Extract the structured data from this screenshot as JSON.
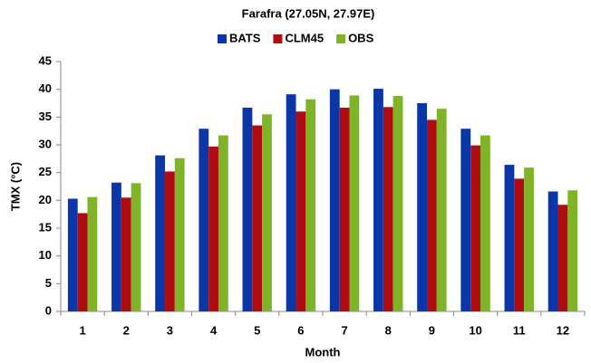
{
  "chart_data": {
    "type": "bar",
    "title": "Farafra (27.05N, 27.97E)",
    "x_label": "Month",
    "y_label": "TMX (°C)",
    "categories": [
      "1",
      "2",
      "3",
      "4",
      "5",
      "6",
      "7",
      "8",
      "9",
      "10",
      "11",
      "12"
    ],
    "series": [
      {
        "name": "BATS",
        "color": "#0a36a8",
        "values": [
          20.3,
          23.2,
          28.1,
          32.9,
          36.7,
          39.1,
          40.0,
          40.1,
          37.5,
          32.9,
          26.4,
          21.6
        ]
      },
      {
        "name": "CLM45",
        "color": "#b00d12",
        "values": [
          17.7,
          20.5,
          25.2,
          29.7,
          33.5,
          36.0,
          36.7,
          36.8,
          34.5,
          29.9,
          23.9,
          19.2
        ]
      },
      {
        "name": "OBS",
        "color": "#7fb428",
        "values": [
          20.6,
          23.1,
          27.6,
          31.7,
          35.5,
          38.2,
          38.9,
          38.8,
          36.5,
          31.7,
          25.9,
          21.8
        ]
      }
    ],
    "ylim": [
      0,
      45
    ],
    "yticks": [
      0,
      5,
      10,
      15,
      20,
      25,
      30,
      35,
      40,
      45
    ],
    "grid": false
  }
}
